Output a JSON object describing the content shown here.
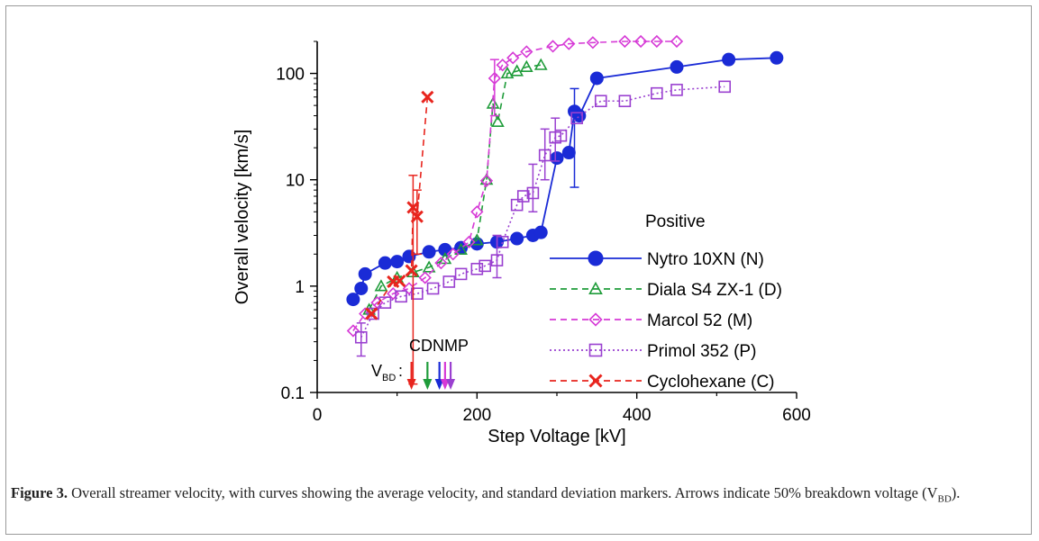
{
  "chart_data": {
    "type": "scatter",
    "title": "",
    "xlabel": "Step Voltage [kV]",
    "ylabel": "Overall velocity [km/s]",
    "xlim": [
      0,
      600
    ],
    "ylim": [
      0.1,
      200
    ],
    "yscale": "log",
    "x_ticks": [
      "0",
      "200",
      "400",
      "600"
    ],
    "y_ticks": [
      "0.1",
      "1",
      "10",
      "100"
    ],
    "legend_title": "Positive",
    "legend_position": "right",
    "annotation_labels": "CDNMP",
    "vbd_label": "V",
    "vbd_subscript": "BD",
    "vbd_colon": ":",
    "vbd_arrows": [
      {
        "key": "C",
        "x": 118,
        "color": "#e8251e"
      },
      {
        "key": "D",
        "x": 138,
        "color": "#1f9c3a"
      },
      {
        "key": "N",
        "x": 153,
        "color": "#1a2bd6"
      },
      {
        "key": "M",
        "x": 160,
        "color": "#d63ad6"
      },
      {
        "key": "P",
        "x": 167,
        "color": "#9a40d0"
      }
    ],
    "series": [
      {
        "name": "Nytro 10XN (N)",
        "color": "#1a2bd6",
        "marker": "circle",
        "line": "solid",
        "x": [
          45,
          55,
          60,
          85,
          100,
          115,
          140,
          160,
          180,
          200,
          225,
          250,
          270,
          280,
          300,
          315,
          322,
          328,
          350,
          450,
          515,
          575
        ],
        "y": [
          0.75,
          0.95,
          1.3,
          1.65,
          1.7,
          1.9,
          2.1,
          2.2,
          2.3,
          2.5,
          2.6,
          2.8,
          3.0,
          3.2,
          16,
          18,
          44,
          40,
          90,
          115,
          135,
          140
        ],
        "err": [
          [
            322,
            8.5,
            72
          ]
        ]
      },
      {
        "name": "Diala S4 ZX-1 (D)",
        "color": "#1f9c3a",
        "marker": "triangle",
        "line": "dashed",
        "x": [
          65,
          80,
          100,
          120,
          140,
          160,
          180,
          200,
          212,
          220,
          226,
          238,
          250,
          262,
          280
        ],
        "y": [
          0.6,
          1.0,
          1.2,
          1.35,
          1.5,
          1.8,
          2.2,
          2.7,
          10,
          52,
          35,
          100,
          105,
          115,
          120
        ],
        "err": []
      },
      {
        "name": "Marcol 52 (M)",
        "color": "#d63ad6",
        "marker": "diamond",
        "line": "dashed",
        "x": [
          45,
          60,
          75,
          95,
          115,
          135,
          155,
          170,
          190,
          200,
          212,
          222,
          232,
          245,
          262,
          295,
          315,
          345,
          385,
          405,
          425,
          450
        ],
        "y": [
          0.38,
          0.55,
          0.7,
          0.85,
          0.95,
          1.2,
          1.65,
          2.0,
          2.6,
          5.0,
          9.8,
          90,
          120,
          140,
          160,
          180,
          190,
          195,
          200,
          200,
          200,
          200
        ],
        "err": [
          [
            222,
            40,
            135
          ]
        ]
      },
      {
        "name": "Primol 352 (P)",
        "color": "#9a40d0",
        "marker": "square",
        "line": "dotted",
        "x": [
          55,
          70,
          85,
          105,
          125,
          145,
          165,
          180,
          200,
          210,
          225,
          232,
          250,
          258,
          270,
          285,
          298,
          305,
          325,
          355,
          385,
          425,
          450,
          510
        ],
        "y": [
          0.33,
          0.55,
          0.7,
          0.8,
          0.85,
          0.95,
          1.1,
          1.3,
          1.45,
          1.55,
          1.75,
          2.6,
          5.8,
          7.0,
          7.5,
          17,
          25,
          26,
          38,
          55,
          55,
          65,
          70,
          75
        ],
        "err": [
          [
            55,
            0.22,
            0.45
          ],
          [
            225,
            1.2,
            3.0
          ],
          [
            270,
            5.0,
            14
          ],
          [
            285,
            10,
            30
          ],
          [
            298,
            15,
            38
          ]
        ]
      },
      {
        "name": "Cyclohexane (C)",
        "color": "#e8251e",
        "marker": "x",
        "line": "dashed",
        "x": [
          68,
          95,
          103,
          118,
          120,
          125,
          138
        ],
        "y": [
          0.55,
          1.1,
          1.12,
          1.4,
          5.5,
          4.5,
          60
        ],
        "err": [
          [
            120,
            0.12,
            11
          ],
          [
            125,
            2.0,
            8
          ]
        ]
      }
    ]
  },
  "caption": {
    "label": "Figure 3.",
    "text_main": " Overall streamer velocity, with curves showing the average velocity, and standard deviation markers. Arrows indicate 50% breakdown voltage (V",
    "text_sub": "BD",
    "text_end": ")."
  }
}
